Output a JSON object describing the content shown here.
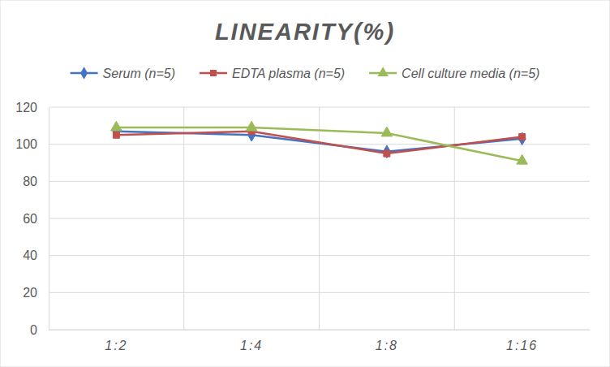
{
  "chart_data": {
    "type": "line",
    "title": "LINEARITY(%)",
    "categories": [
      "1:2",
      "1:4",
      "1:8",
      "1:16"
    ],
    "series": [
      {
        "name": "Serum (n=5)",
        "color": "#4472c4",
        "marker": "diamond",
        "values": [
          107,
          105,
          96,
          103
        ]
      },
      {
        "name": "EDTA plasma (n=5)",
        "color": "#c0504d",
        "marker": "square",
        "values": [
          105,
          107,
          95,
          104
        ]
      },
      {
        "name": "Cell culture media (n=5)",
        "color": "#9bbb59",
        "marker": "triangle",
        "values": [
          109,
          109,
          106,
          91
        ]
      }
    ],
    "ylim": [
      0,
      120
    ],
    "yticks": [
      0,
      20,
      40,
      60,
      80,
      100,
      120
    ],
    "grid": true,
    "legend": "top"
  }
}
